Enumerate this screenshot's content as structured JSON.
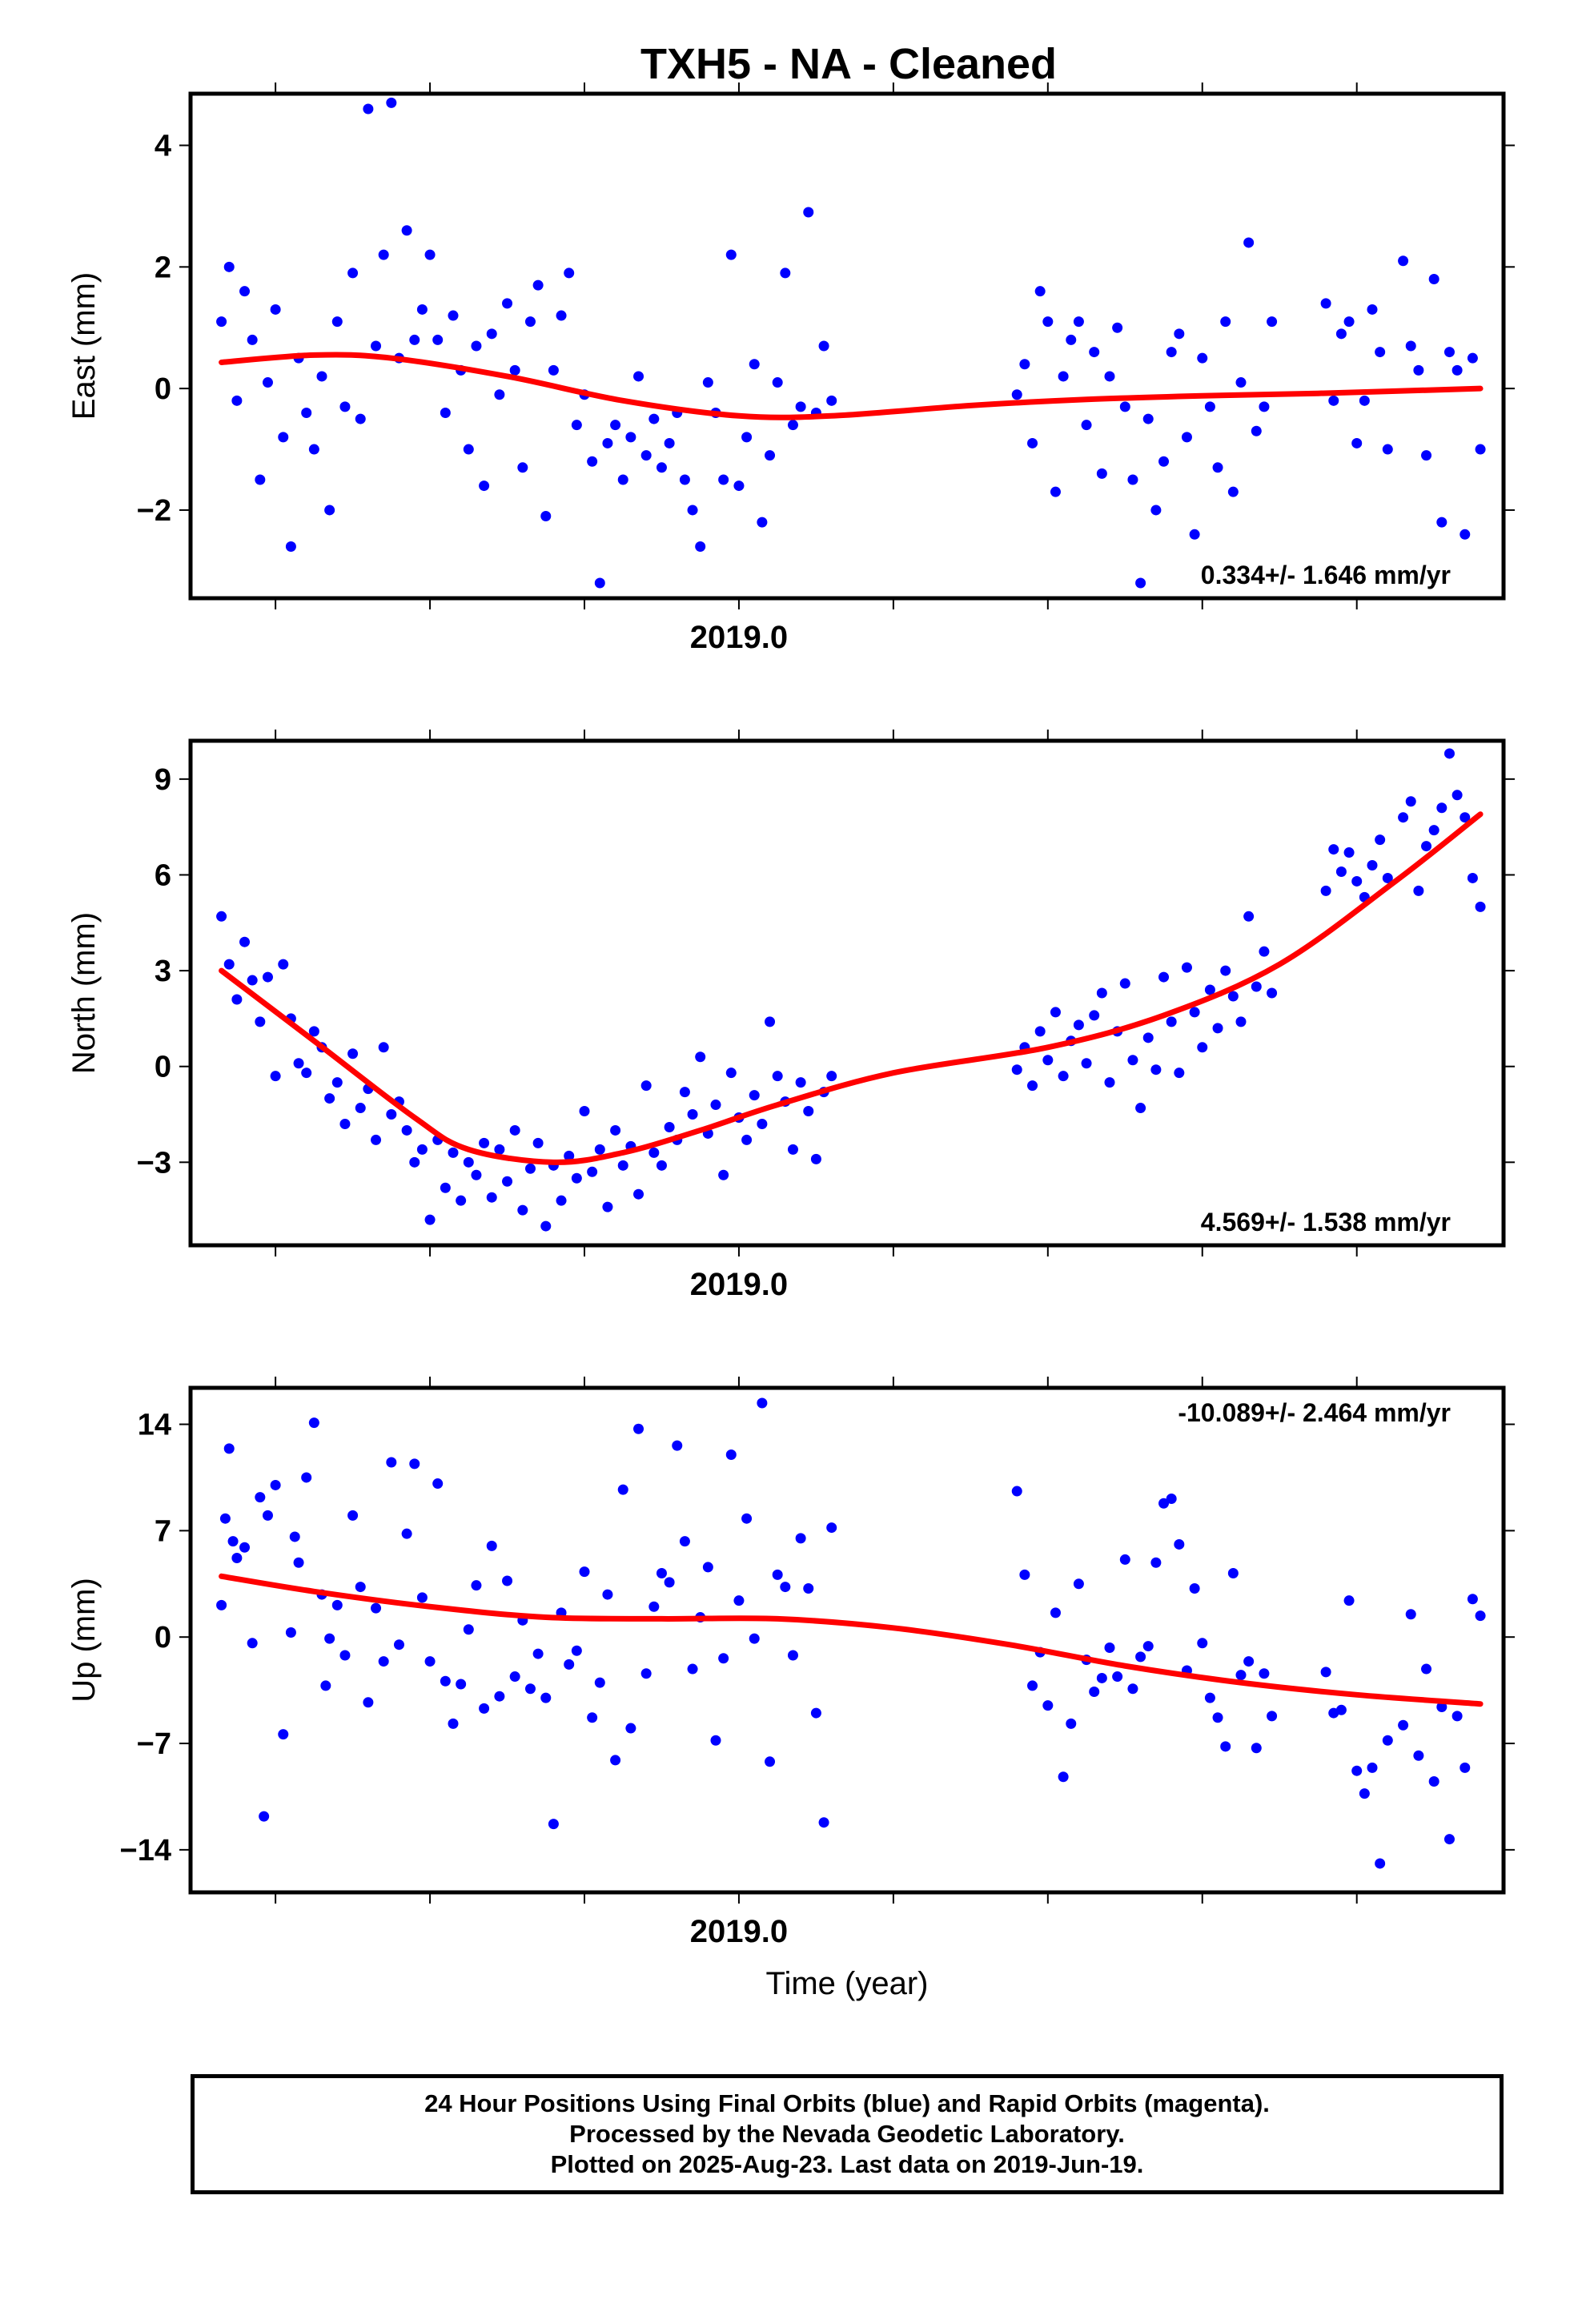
{
  "title": "TXH5  - NA - Cleaned",
  "xlabel": "Time (year)",
  "footer": {
    "line1": "24 Hour Positions Using Final Orbits (blue) and Rapid Orbits (magenta).",
    "line2": "Processed by the Nevada Geodetic Laboratory.",
    "line3": "Plotted on 2025-Aug-23. Last data on 2019-Jun-19."
  },
  "colors": {
    "points": "#0000ff",
    "trend": "#ff0000",
    "frame": "#000000"
  },
  "chart_data": [
    {
      "type": "scatter",
      "ylabel": "East (mm)",
      "rate_label": "0.334+/- 1.646 mm/yr",
      "xlim": [
        2018.29,
        2019.99
      ],
      "ylim": [
        -3.45,
        4.85
      ],
      "xticks": [
        2018.4,
        2018.6,
        2018.8,
        2019.0,
        2019.2,
        2019.4,
        2019.6,
        2019.8
      ],
      "xtick_labels": [
        {
          "value": 2019.0,
          "label": "2019.0"
        }
      ],
      "yticks": [
        -2,
        0,
        2,
        4
      ],
      "ytick_labels": [
        "−2",
        "0",
        "2",
        "4"
      ],
      "trend": {
        "x": [
          2018.33,
          2018.45,
          2018.55,
          2018.7,
          2018.85,
          2019.0,
          2019.12,
          2019.3,
          2019.45,
          2019.6,
          2019.75,
          2019.96
        ],
        "y": [
          0.43,
          0.55,
          0.5,
          0.2,
          -0.2,
          -0.45,
          -0.45,
          -0.28,
          -0.18,
          -0.12,
          -0.08,
          0.0
        ]
      },
      "points": {
        "x": [
          2018.33,
          2018.34,
          2018.35,
          2018.36,
          2018.37,
          2018.38,
          2018.39,
          2018.4,
          2018.41,
          2018.42,
          2018.43,
          2018.44,
          2018.45,
          2018.46,
          2018.47,
          2018.48,
          2018.49,
          2018.5,
          2018.51,
          2018.52,
          2018.53,
          2018.54,
          2018.55,
          2018.56,
          2018.57,
          2018.58,
          2018.59,
          2018.6,
          2018.61,
          2018.62,
          2018.63,
          2018.64,
          2018.65,
          2018.66,
          2018.67,
          2018.68,
          2018.69,
          2018.7,
          2018.71,
          2018.72,
          2018.73,
          2018.74,
          2018.75,
          2018.76,
          2018.77,
          2018.78,
          2018.79,
          2018.8,
          2018.81,
          2018.82,
          2018.83,
          2018.84,
          2018.85,
          2018.86,
          2018.87,
          2018.88,
          2018.89,
          2018.9,
          2018.91,
          2018.92,
          2018.93,
          2018.94,
          2018.95,
          2018.96,
          2018.97,
          2018.98,
          2018.99,
          2019.0,
          2019.01,
          2019.02,
          2019.03,
          2019.04,
          2019.05,
          2019.06,
          2019.07,
          2019.08,
          2019.09,
          2019.1,
          2019.11,
          2019.12,
          2019.36,
          2019.37,
          2019.38,
          2019.39,
          2019.4,
          2019.41,
          2019.42,
          2019.43,
          2019.44,
          2019.45,
          2019.46,
          2019.47,
          2019.48,
          2019.49,
          2019.5,
          2019.51,
          2019.52,
          2019.53,
          2019.54,
          2019.55,
          2019.56,
          2019.57,
          2019.58,
          2019.59,
          2019.6,
          2019.61,
          2019.62,
          2019.63,
          2019.64,
          2019.65,
          2019.66,
          2019.67,
          2019.68,
          2019.69,
          2019.76,
          2019.77,
          2019.78,
          2019.79,
          2019.8,
          2019.81,
          2019.82,
          2019.83,
          2019.84,
          2019.86,
          2019.87,
          2019.88,
          2019.89,
          2019.9,
          2019.91,
          2019.92,
          2019.93,
          2019.94,
          2019.95,
          2019.96
        ],
        "y": [
          1.1,
          2.0,
          -0.2,
          1.6,
          0.8,
          -1.5,
          0.1,
          1.3,
          -0.8,
          -2.6,
          0.5,
          -0.4,
          -1.0,
          0.2,
          -2.0,
          1.1,
          -0.3,
          1.9,
          -0.5,
          4.6,
          0.7,
          2.2,
          4.7,
          0.5,
          2.6,
          0.8,
          1.3,
          2.2,
          0.8,
          -0.4,
          1.2,
          0.3,
          -1.0,
          0.7,
          -1.6,
          0.9,
          -0.1,
          1.4,
          0.3,
          -1.3,
          1.1,
          1.7,
          -2.1,
          0.3,
          1.2,
          1.9,
          -0.6,
          -0.1,
          -1.2,
          -3.2,
          -0.9,
          -0.6,
          -1.5,
          -0.8,
          0.2,
          -1.1,
          -0.5,
          -1.3,
          -0.9,
          -0.4,
          -1.5,
          -2.0,
          -2.6,
          0.1,
          -0.4,
          -1.5,
          2.2,
          -1.6,
          -0.8,
          0.4,
          -2.2,
          -1.1,
          0.1,
          1.9,
          -0.6,
          -0.3,
          2.9,
          -0.4,
          0.7,
          -0.2,
          -0.1,
          0.4,
          -0.9,
          1.6,
          1.1,
          -1.7,
          0.2,
          0.8,
          1.1,
          -0.6,
          0.6,
          -1.4,
          0.2,
          1.0,
          -0.3,
          -1.5,
          -3.2,
          -0.5,
          -2.0,
          -1.2,
          0.6,
          0.9,
          -0.8,
          -2.4,
          0.5,
          -0.3,
          -1.3,
          1.1,
          -1.7,
          0.1,
          2.4,
          -0.7,
          -0.3,
          1.1,
          1.4,
          -0.2,
          0.9,
          1.1,
          -0.9,
          -0.2,
          1.3,
          0.6,
          -1.0,
          2.1,
          0.7,
          0.3,
          -1.1,
          1.8,
          -2.2,
          0.6,
          0.3,
          -2.4,
          0.5,
          -1.0
        ]
      }
    },
    {
      "type": "scatter",
      "ylabel": "North (mm)",
      "rate_label": "4.569+/- 1.538 mm/yr",
      "xlim": [
        2018.29,
        2019.99
      ],
      "ylim": [
        -5.6,
        10.2
      ],
      "xticks": [
        2018.4,
        2018.6,
        2018.8,
        2019.0,
        2019.2,
        2019.4,
        2019.6,
        2019.8
      ],
      "xtick_labels": [
        {
          "value": 2019.0,
          "label": "2019.0"
        }
      ],
      "yticks": [
        -3,
        0,
        3,
        6,
        9
      ],
      "ytick_labels": [
        "−3",
        "0",
        "3",
        "6",
        "9"
      ],
      "trend": {
        "x": [
          2018.33,
          2018.45,
          2018.58,
          2018.65,
          2018.76,
          2018.85,
          2018.95,
          2019.05,
          2019.2,
          2019.4,
          2019.55,
          2019.7,
          2019.85,
          2019.96
        ],
        "y": [
          3.0,
          0.8,
          -1.6,
          -2.6,
          -3.0,
          -2.7,
          -2.0,
          -1.2,
          -0.2,
          0.6,
          1.6,
          3.2,
          5.8,
          7.9
        ]
      },
      "points": {
        "x": [
          2018.33,
          2018.34,
          2018.35,
          2018.36,
          2018.37,
          2018.38,
          2018.39,
          2018.4,
          2018.41,
          2018.42,
          2018.43,
          2018.44,
          2018.45,
          2018.46,
          2018.47,
          2018.48,
          2018.49,
          2018.5,
          2018.51,
          2018.52,
          2018.53,
          2018.54,
          2018.55,
          2018.56,
          2018.57,
          2018.58,
          2018.59,
          2018.6,
          2018.61,
          2018.62,
          2018.63,
          2018.64,
          2018.65,
          2018.66,
          2018.67,
          2018.68,
          2018.69,
          2018.7,
          2018.71,
          2018.72,
          2018.73,
          2018.74,
          2018.75,
          2018.76,
          2018.77,
          2018.78,
          2018.79,
          2018.8,
          2018.81,
          2018.82,
          2018.83,
          2018.84,
          2018.85,
          2018.86,
          2018.87,
          2018.88,
          2018.89,
          2018.9,
          2018.91,
          2018.92,
          2018.93,
          2018.94,
          2018.95,
          2018.96,
          2018.97,
          2018.98,
          2018.99,
          2019.0,
          2019.01,
          2019.02,
          2019.03,
          2019.04,
          2019.05,
          2019.06,
          2019.07,
          2019.08,
          2019.09,
          2019.1,
          2019.11,
          2019.12,
          2019.36,
          2019.37,
          2019.38,
          2019.39,
          2019.4,
          2019.41,
          2019.42,
          2019.43,
          2019.44,
          2019.45,
          2019.46,
          2019.47,
          2019.48,
          2019.49,
          2019.5,
          2019.51,
          2019.52,
          2019.53,
          2019.54,
          2019.55,
          2019.56,
          2019.57,
          2019.58,
          2019.59,
          2019.6,
          2019.61,
          2019.62,
          2019.63,
          2019.64,
          2019.65,
          2019.66,
          2019.67,
          2019.68,
          2019.69,
          2019.76,
          2019.77,
          2019.78,
          2019.79,
          2019.8,
          2019.81,
          2019.82,
          2019.83,
          2019.84,
          2019.86,
          2019.87,
          2019.88,
          2019.89,
          2019.9,
          2019.91,
          2019.92,
          2019.93,
          2019.94,
          2019.95,
          2019.96
        ],
        "y": [
          4.7,
          3.2,
          2.1,
          3.9,
          2.7,
          1.4,
          2.8,
          -0.3,
          3.2,
          1.5,
          0.1,
          -0.2,
          1.1,
          0.6,
          -1.0,
          -0.5,
          -1.8,
          0.4,
          -1.3,
          -0.7,
          -2.3,
          0.6,
          -1.5,
          -1.1,
          -2.0,
          -3.0,
          -2.6,
          -4.8,
          -2.3,
          -3.8,
          -2.7,
          -4.2,
          -3.0,
          -3.4,
          -2.4,
          -4.1,
          -2.6,
          -3.6,
          -2.0,
          -4.5,
          -3.2,
          -2.4,
          -5.0,
          -3.1,
          -4.2,
          -2.8,
          -3.5,
          -1.4,
          -3.3,
          -2.6,
          -4.4,
          -2.0,
          -3.1,
          -2.5,
          -4.0,
          -0.6,
          -2.7,
          -3.1,
          -1.9,
          -2.3,
          -0.8,
          -1.5,
          0.3,
          -2.1,
          -1.2,
          -3.4,
          -0.2,
          -1.6,
          -2.3,
          -0.9,
          -1.8,
          1.4,
          -0.3,
          -1.1,
          -2.6,
          -0.5,
          -1.4,
          -2.9,
          -0.8,
          -0.3,
          -0.1,
          0.6,
          -0.6,
          1.1,
          0.2,
          1.7,
          -0.3,
          0.8,
          1.3,
          0.1,
          1.6,
          2.3,
          -0.5,
          1.1,
          2.6,
          0.2,
          -1.3,
          0.9,
          -0.1,
          2.8,
          1.4,
          -0.2,
          3.1,
          1.7,
          0.6,
          2.4,
          1.2,
          3.0,
          2.2,
          1.4,
          4.7,
          2.5,
          3.6,
          2.3,
          5.5,
          6.8,
          6.1,
          6.7,
          5.8,
          5.3,
          6.3,
          7.1,
          5.9,
          7.8,
          8.3,
          5.5,
          6.9,
          7.4,
          8.1,
          9.8,
          8.5,
          7.8,
          5.9,
          5.0
        ]
      }
    },
    {
      "type": "scatter",
      "ylabel": "Up (mm)",
      "rate_label": "-10.089+/- 2.464 mm/yr",
      "xlim": [
        2018.29,
        2019.99
      ],
      "ylim": [
        -16.8,
        16.4
      ],
      "xticks": [
        2018.4,
        2018.6,
        2018.8,
        2019.0,
        2019.2,
        2019.4,
        2019.6,
        2019.8
      ],
      "xtick_labels": [
        {
          "value": 2019.0,
          "label": "2019.0"
        }
      ],
      "yticks": [
        -14,
        -7,
        0,
        7,
        14
      ],
      "ytick_labels": [
        "−14",
        "−7",
        "0",
        "7",
        "14"
      ],
      "trend": {
        "x": [
          2018.33,
          2018.45,
          2018.6,
          2018.75,
          2018.9,
          2019.05,
          2019.2,
          2019.35,
          2019.5,
          2019.65,
          2019.8,
          2019.96
        ],
        "y": [
          4.0,
          3.0,
          2.0,
          1.3,
          1.2,
          1.2,
          0.6,
          -0.5,
          -1.9,
          -3.0,
          -3.8,
          -4.4
        ]
      },
      "points": {
        "x": [
          2018.33,
          2018.335,
          2018.34,
          2018.345,
          2018.35,
          2018.36,
          2018.37,
          2018.38,
          2018.385,
          2018.39,
          2018.4,
          2018.41,
          2018.42,
          2018.425,
          2018.43,
          2018.44,
          2018.45,
          2018.46,
          2018.465,
          2018.47,
          2018.48,
          2018.49,
          2018.5,
          2018.51,
          2018.52,
          2018.53,
          2018.54,
          2018.55,
          2018.56,
          2018.57,
          2018.58,
          2018.59,
          2018.6,
          2018.61,
          2018.62,
          2018.63,
          2018.64,
          2018.65,
          2018.66,
          2018.67,
          2018.68,
          2018.69,
          2018.7,
          2018.71,
          2018.72,
          2018.73,
          2018.74,
          2018.75,
          2018.76,
          2018.77,
          2018.78,
          2018.79,
          2018.8,
          2018.81,
          2018.82,
          2018.83,
          2018.84,
          2018.85,
          2018.86,
          2018.87,
          2018.88,
          2018.89,
          2018.9,
          2018.91,
          2018.92,
          2018.93,
          2018.94,
          2018.95,
          2018.96,
          2018.97,
          2018.98,
          2018.99,
          2019.0,
          2019.01,
          2019.02,
          2019.03,
          2019.04,
          2019.05,
          2019.06,
          2019.07,
          2019.08,
          2019.09,
          2019.1,
          2019.11,
          2019.12,
          2019.36,
          2019.37,
          2019.38,
          2019.39,
          2019.4,
          2019.41,
          2019.42,
          2019.43,
          2019.44,
          2019.45,
          2019.46,
          2019.47,
          2019.48,
          2019.49,
          2019.5,
          2019.51,
          2019.52,
          2019.53,
          2019.54,
          2019.55,
          2019.56,
          2019.57,
          2019.58,
          2019.59,
          2019.6,
          2019.61,
          2019.62,
          2019.63,
          2019.64,
          2019.65,
          2019.66,
          2019.67,
          2019.68,
          2019.69,
          2019.76,
          2019.77,
          2019.78,
          2019.79,
          2019.8,
          2019.81,
          2019.82,
          2019.83,
          2019.84,
          2019.86,
          2019.87,
          2019.88,
          2019.89,
          2019.9,
          2019.91,
          2019.92,
          2019.93,
          2019.94,
          2019.95,
          2019.96
        ],
        "y": [
          2.1,
          7.8,
          12.4,
          6.3,
          5.2,
          5.9,
          -0.4,
          9.2,
          -11.8,
          8.0,
          10.0,
          -6.4,
          0.3,
          6.6,
          4.9,
          10.5,
          14.1,
          2.8,
          -3.2,
          -0.1,
          2.1,
          -1.2,
          8.0,
          3.3,
          -4.3,
          1.9,
          -1.6,
          11.5,
          -0.5,
          6.8,
          11.4,
          2.6,
          -1.6,
          10.1,
          -2.9,
          -5.7,
          -3.1,
          0.5,
          3.4,
          -4.7,
          6.0,
          -3.9,
          3.7,
          -2.6,
          1.1,
          -3.4,
          -1.1,
          -4.0,
          -12.3,
          1.6,
          -1.8,
          -0.9,
          4.3,
          -5.3,
          -3.0,
          2.8,
          -8.1,
          9.7,
          -6.0,
          13.7,
          -2.4,
          2.0,
          4.2,
          3.6,
          12.6,
          6.3,
          -2.1,
          1.3,
          4.6,
          -6.8,
          -1.4,
          12.0,
          2.4,
          7.8,
          -0.1,
          15.4,
          -8.2,
          4.1,
          3.3,
          -1.2,
          6.5,
          3.2,
          -5.0,
          -12.2,
          7.2,
          9.6,
          4.1,
          -3.2,
          -1.0,
          -4.5,
          1.6,
          -9.2,
          -5.7,
          3.5,
          -1.5,
          -3.6,
          -2.7,
          -0.7,
          -2.6,
          5.1,
          -3.4,
          -1.3,
          -0.6,
          4.9,
          8.8,
          9.1,
          6.1,
          -2.2,
          3.2,
          -0.4,
          -4.0,
          -5.3,
          -7.2,
          4.2,
          -2.5,
          -1.6,
          -7.3,
          -2.4,
          -5.2,
          -2.3,
          -5.0,
          -4.8,
          2.4,
          -8.8,
          -10.3,
          -8.6,
          -14.9,
          -6.8,
          -5.8,
          1.5,
          -7.8,
          -2.1,
          -9.5,
          -4.6,
          -13.3,
          -5.2,
          -8.6,
          2.5,
          1.4
        ]
      }
    }
  ]
}
